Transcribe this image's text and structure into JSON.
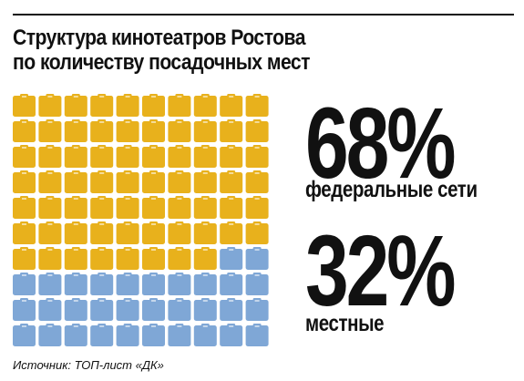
{
  "title_lines": [
    "Структура кинотеатров Ростова",
    "по количеству  посадочных мест"
  ],
  "colors": {
    "federal": "#E8B11C",
    "local": "#7FA7D6",
    "text": "#111111"
  },
  "stats": {
    "federal": {
      "value": "68%",
      "label": "федеральные сети"
    },
    "local": {
      "value": "32%",
      "label": "местные"
    }
  },
  "source": "Источник: ТОП-лист «ДК»",
  "chart_data": {
    "type": "waffle",
    "grid_columns": 10,
    "grid_rows": 10,
    "categories": [
      "федеральные сети",
      "местные"
    ],
    "values": [
      68,
      32
    ],
    "units": "%"
  }
}
